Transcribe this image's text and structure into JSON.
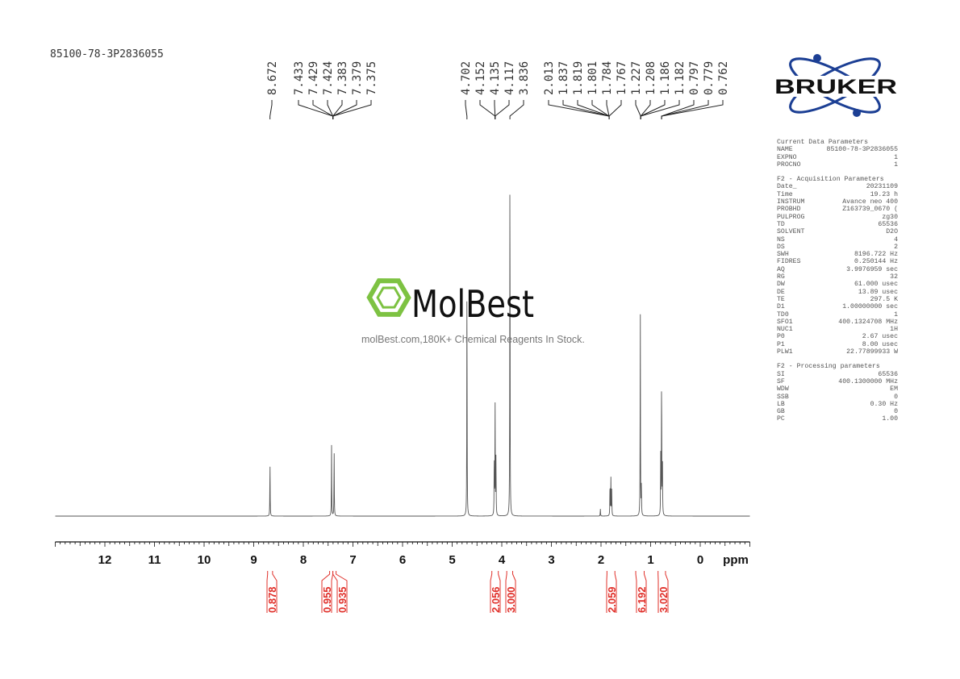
{
  "sample_title": "85100-78-3P2836055",
  "bruker_logo_text": "BRUKER",
  "watermark": {
    "brand": "MolBest",
    "tagline": "molBest.com,180K+ Chemical Reagents In Stock.",
    "color": "#7dc242"
  },
  "parameters": {
    "current": {
      "title": "Current Data Parameters",
      "rows": [
        [
          "NAME",
          "85100-78-3P2836055"
        ],
        [
          "EXPNO",
          "1"
        ],
        [
          "PROCNO",
          "1"
        ]
      ]
    },
    "acquisition": {
      "title": "F2 - Acquisition Parameters",
      "rows": [
        [
          "Date_",
          "20231109"
        ],
        [
          "Time",
          "19.23 h"
        ],
        [
          "INSTRUM",
          "Avance neo 400"
        ],
        [
          "PROBHD",
          "Z163739_0670 ("
        ],
        [
          "PULPROG",
          "zg30"
        ],
        [
          "TD",
          "65536"
        ],
        [
          "SOLVENT",
          "D2O"
        ],
        [
          "NS",
          "4"
        ],
        [
          "DS",
          "2"
        ],
        [
          "SWH",
          "8196.722 Hz"
        ],
        [
          "FIDRES",
          "0.250144 Hz"
        ],
        [
          "AQ",
          "3.9976959 sec"
        ],
        [
          "RG",
          "32"
        ],
        [
          "DW",
          "61.000 usec"
        ],
        [
          "DE",
          "13.89 usec"
        ],
        [
          "TE",
          "297.5 K"
        ],
        [
          "D1",
          "1.00000000 sec"
        ],
        [
          "TD0",
          "1"
        ],
        [
          "SFO1",
          "400.1324708 MHz"
        ],
        [
          "NUC1",
          "1H"
        ],
        [
          "P0",
          "2.67 usec"
        ],
        [
          "P1",
          "8.00 usec"
        ],
        [
          "PLW1",
          "22.77899933 W"
        ]
      ]
    },
    "processing": {
      "title": "F2 - Processing parameters",
      "rows": [
        [
          "SI",
          "65536"
        ],
        [
          "SF",
          "400.1300000 MHz"
        ],
        [
          "WDW",
          "EM"
        ],
        [
          "SSB",
          "0"
        ],
        [
          "LB",
          "0.30 Hz"
        ],
        [
          "GB",
          "0"
        ],
        [
          "PC",
          "1.00"
        ]
      ]
    }
  },
  "chart_data": {
    "type": "line",
    "xlabel": "ppm",
    "xlim": [
      13.0,
      -1.0
    ],
    "x_reversed": true,
    "x_ticks": [
      "12",
      "11",
      "10",
      "9",
      "8",
      "7",
      "6",
      "5",
      "4",
      "3",
      "2",
      "1",
      "0"
    ],
    "peak_labels": [
      {
        "group": [
          "8.672"
        ]
      },
      {
        "group": [
          "7.433",
          "7.429",
          "7.424",
          "7.383",
          "7.379",
          "7.375"
        ]
      },
      {
        "group": [
          "4.702"
        ]
      },
      {
        "group": [
          "4.152",
          "4.135",
          "4.117"
        ]
      },
      {
        "group": [
          "3.836"
        ]
      },
      {
        "group": [
          "2.013",
          "1.837",
          "1.819",
          "1.801",
          "1.784",
          "1.767"
        ]
      },
      {
        "group": [
          "1.227",
          "1.208",
          "1.186",
          "1.182"
        ]
      },
      {
        "group": [
          "0.797",
          "0.779",
          "0.762"
        ]
      }
    ],
    "peaks": [
      {
        "ppm": 8.672,
        "intensity": 0.15
      },
      {
        "ppm": 7.431,
        "intensity": 0.19
      },
      {
        "ppm": 7.379,
        "intensity": 0.18
      },
      {
        "ppm": 4.702,
        "intensity": 0.65
      },
      {
        "ppm": 4.152,
        "intensity": 0.16
      },
      {
        "ppm": 4.135,
        "intensity": 0.31
      },
      {
        "ppm": 4.117,
        "intensity": 0.16
      },
      {
        "ppm": 3.836,
        "intensity": 1.0
      },
      {
        "ppm": 2.013,
        "intensity": 0.02
      },
      {
        "ppm": 1.819,
        "intensity": 0.09
      },
      {
        "ppm": 1.801,
        "intensity": 0.1
      },
      {
        "ppm": 1.784,
        "intensity": 0.07
      },
      {
        "ppm": 1.208,
        "intensity": 0.56
      },
      {
        "ppm": 1.186,
        "intensity": 0.08
      },
      {
        "ppm": 0.797,
        "intensity": 0.16
      },
      {
        "ppm": 0.779,
        "intensity": 0.38
      },
      {
        "ppm": 0.762,
        "intensity": 0.17
      }
    ],
    "integrals": [
      {
        "value": "0.878",
        "from": 8.72,
        "to": 8.62
      },
      {
        "value": "0.955",
        "from": 7.47,
        "to": 7.405
      },
      {
        "value": "0.935",
        "from": 7.405,
        "to": 7.34
      },
      {
        "value": "2.056",
        "from": 4.2,
        "to": 4.07
      },
      {
        "value": "3.000",
        "from": 3.9,
        "to": 3.78
      },
      {
        "value": "2.059",
        "from": 1.88,
        "to": 1.72
      },
      {
        "value": "6.192",
        "from": 1.3,
        "to": 1.13
      },
      {
        "value": "3.020",
        "from": 0.85,
        "to": 0.7
      }
    ],
    "integral_color": "#e0302a"
  }
}
